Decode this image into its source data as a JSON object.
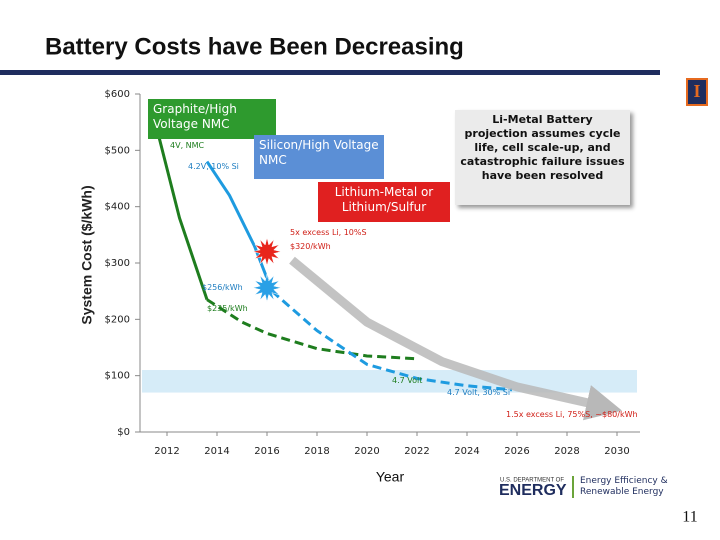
{
  "page_number": "11",
  "logo": {
    "agency": "U.S. DEPARTMENT OF",
    "name": "ENERGY",
    "office": "Energy Efficiency & Renewable Energy"
  },
  "chart_data": {
    "type": "line",
    "title": "Battery Costs have Been Decreasing",
    "y_label": "System Cost ($/kWh)",
    "x_label": "Year",
    "xlim": [
      2011,
      2031
    ],
    "xticks": [
      2012,
      2014,
      2016,
      2018,
      2020,
      2022,
      2024,
      2026,
      2028,
      2030
    ],
    "ylim": [
      0,
      600
    ],
    "yticks": [
      {
        "value": 0,
        "label": "$0"
      },
      {
        "value": 100,
        "label": "$100"
      },
      {
        "value": 200,
        "label": "$200"
      },
      {
        "value": 300,
        "label": "$300"
      },
      {
        "value": 400,
        "label": "$400"
      },
      {
        "value": 500,
        "label": "$500"
      },
      {
        "value": 600,
        "label": "$600"
      }
    ],
    "band": {
      "range": [
        70,
        110
      ],
      "color": "#d6ecf8"
    },
    "series": [
      {
        "name": "Graphite/High Voltage NMC",
        "color": "#1e7d1e",
        "box_color": "#2e9a2e",
        "x": [
          2011.5,
          2012.5,
          2013.6,
          2015,
          2016,
          2018,
          2020,
          2022
        ],
        "values": [
          555,
          380,
          235,
          195,
          175,
          148,
          135,
          130
        ],
        "dashed_from": 2013.6
      },
      {
        "name": "Silicon/High Voltage NMC",
        "color": "#1e9be0",
        "box_color": "#5b8fd6",
        "x": [
          2013.6,
          2014.5,
          2015.5,
          2016.2,
          2018,
          2020,
          2022,
          2024,
          2025.8
        ],
        "values": [
          480,
          420,
          330,
          250,
          180,
          120,
          95,
          82,
          75
        ],
        "dashed_from": 2016.2
      },
      {
        "name": "Lithium-Metal or Lithium/Sulfur",
        "color": "#e8251c",
        "box_color": "#e02020",
        "x": [],
        "values": []
      },
      {
        "name": "Li-Metal Battery projection assumes cycle life, cell scale-up, and catastrophic failure issues have been resolved",
        "color": "#b8b8b8",
        "box_color": "#ebebeb",
        "x": [
          2017,
          2020,
          2023,
          2026,
          2029.5
        ],
        "values": [
          305,
          195,
          125,
          80,
          45
        ],
        "arrow": true
      }
    ],
    "markers": [
      {
        "x": 2016,
        "y": 320,
        "color": "#e8251c"
      },
      {
        "x": 2016,
        "y": 256,
        "color": "#2aa0e6"
      }
    ],
    "annotations": [
      {
        "text": "4V, NMC",
        "color": "#1e7d1e"
      },
      {
        "text": "4.2V, 10% Si",
        "color": "#1e7dc0"
      },
      {
        "text": "5x excess Li, 10%S",
        "color": "#d02018"
      },
      {
        "text": "$320/kWh",
        "color": "#d02018"
      },
      {
        "text": "$256/kWh",
        "color": "#1e7dc0"
      },
      {
        "text": "$235/kWh",
        "color": "#1e7d1e"
      },
      {
        "text": "4.7 Volt",
        "color": "#1e7d1e"
      },
      {
        "text": "4.7 Volt, 30% Si",
        "color": "#1e7dc0"
      },
      {
        "text": "1.5x excess Li, 75%S, ~$80/kWh",
        "color": "#d02018"
      }
    ]
  }
}
